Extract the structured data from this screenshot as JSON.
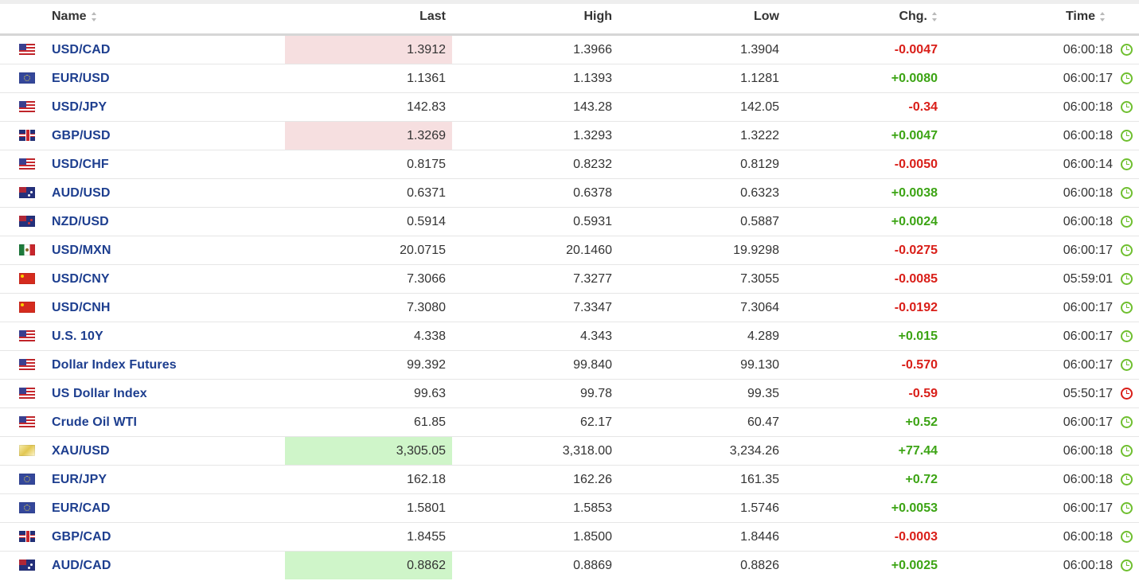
{
  "columns": {
    "name": "Name",
    "last": "Last",
    "high": "High",
    "low": "Low",
    "chg": "Chg.",
    "time": "Time"
  },
  "rows": [
    {
      "flag": "us-flag-icon",
      "name": "USD/CAD",
      "last": "1.3912",
      "high": "1.3966",
      "low": "1.3904",
      "chg": "-0.0047",
      "time": "06:00:18",
      "status": "ok"
    },
    {
      "flag": "eu-flag-icon",
      "name": "EUR/USD",
      "last": "1.1361",
      "high": "1.1393",
      "low": "1.1281",
      "chg": "+0.0080",
      "time": "06:00:17",
      "status": "ok"
    },
    {
      "flag": "us-flag-icon",
      "name": "USD/JPY",
      "last": "142.83",
      "high": "143.28",
      "low": "142.05",
      "chg": "-0.34",
      "time": "06:00:18",
      "status": "ok"
    },
    {
      "flag": "gb-flag-icon",
      "name": "GBP/USD",
      "last": "1.3269",
      "high": "1.3293",
      "low": "1.3222",
      "chg": "+0.0047",
      "time": "06:00:18",
      "status": "ok"
    },
    {
      "flag": "us-flag-icon",
      "name": "USD/CHF",
      "last": "0.8175",
      "high": "0.8232",
      "low": "0.8129",
      "chg": "-0.0050",
      "time": "06:00:14",
      "status": "ok"
    },
    {
      "flag": "au-flag-icon",
      "name": "AUD/USD",
      "last": "0.6371",
      "high": "0.6378",
      "low": "0.6323",
      "chg": "+0.0038",
      "time": "06:00:18",
      "status": "ok"
    },
    {
      "flag": "nz-flag-icon",
      "name": "NZD/USD",
      "last": "0.5914",
      "high": "0.5931",
      "low": "0.5887",
      "chg": "+0.0024",
      "time": "06:00:18",
      "status": "ok"
    },
    {
      "flag": "mx-flag-icon",
      "name": "USD/MXN",
      "last": "20.0715",
      "high": "20.1460",
      "low": "19.9298",
      "chg": "-0.0275",
      "time": "06:00:17",
      "status": "ok"
    },
    {
      "flag": "cn-flag-icon",
      "name": "USD/CNY",
      "last": "7.3066",
      "high": "7.3277",
      "low": "7.3055",
      "chg": "-0.0085",
      "time": "05:59:01",
      "status": "ok"
    },
    {
      "flag": "cn-flag-icon",
      "name": "USD/CNH",
      "last": "7.3080",
      "high": "7.3347",
      "low": "7.3064",
      "chg": "-0.0192",
      "time": "06:00:17",
      "status": "ok"
    },
    {
      "flag": "us-flag-icon",
      "name": "U.S. 10Y",
      "last": "4.338",
      "high": "4.343",
      "low": "4.289",
      "chg": "+0.015",
      "time": "06:00:17",
      "status": "ok"
    },
    {
      "flag": "us-flag-icon",
      "name": "Dollar Index Futures",
      "last": "99.392",
      "high": "99.840",
      "low": "99.130",
      "chg": "-0.570",
      "time": "06:00:17",
      "status": "ok"
    },
    {
      "flag": "us-flag-icon",
      "name": "US Dollar Index",
      "last": "99.63",
      "high": "99.78",
      "low": "99.35",
      "chg": "-0.59",
      "time": "05:50:17",
      "status": "closed"
    },
    {
      "flag": "us-flag-icon",
      "name": "Crude Oil WTI",
      "last": "61.85",
      "high": "62.17",
      "low": "60.47",
      "chg": "+0.52",
      "time": "06:00:17",
      "status": "ok"
    },
    {
      "flag": "gold-icon",
      "name": "XAU/USD",
      "last": "3,305.05",
      "high": "3,318.00",
      "low": "3,234.26",
      "chg": "+77.44",
      "time": "06:00:18",
      "status": "ok"
    },
    {
      "flag": "eu-flag-icon",
      "name": "EUR/JPY",
      "last": "162.18",
      "high": "162.26",
      "low": "161.35",
      "chg": "+0.72",
      "time": "06:00:18",
      "status": "ok"
    },
    {
      "flag": "eu-flag-icon",
      "name": "EUR/CAD",
      "last": "1.5801",
      "high": "1.5853",
      "low": "1.5746",
      "chg": "+0.0053",
      "time": "06:00:17",
      "status": "ok"
    },
    {
      "flag": "gb-flag-icon",
      "name": "GBP/CAD",
      "last": "1.8455",
      "high": "1.8500",
      "low": "1.8446",
      "chg": "-0.0003",
      "time": "06:00:18",
      "status": "ok"
    },
    {
      "flag": "au-flag-icon",
      "name": "AUD/CAD",
      "last": "0.8862",
      "high": "0.8869",
      "low": "0.8826",
      "chg": "+0.0025",
      "time": "06:00:18",
      "status": "ok"
    }
  ],
  "colors": {
    "name_link": "#1d3e8f",
    "negative": "#d91e18",
    "positive": "#3ca414",
    "last_down_highlight": "#f6dfe0",
    "last_up_highlight": "#cff5c9",
    "status_open": "#6fbf2f",
    "status_closed": "#d91e18"
  }
}
